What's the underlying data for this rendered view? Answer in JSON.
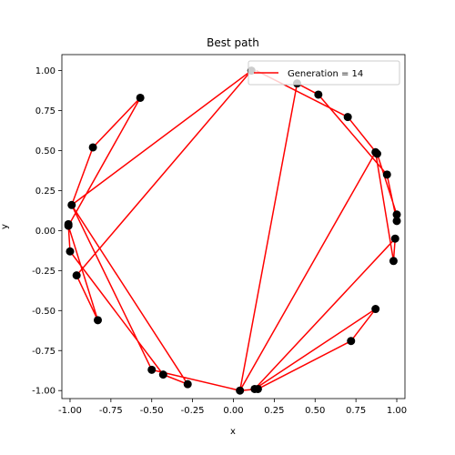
{
  "chart_data": {
    "type": "line",
    "title": "Best path",
    "xlabel": "x",
    "ylabel": "y",
    "xlim": [
      -1.05,
      1.05
    ],
    "ylim": [
      -1.05,
      1.1
    ],
    "xticks": [
      "-1.00",
      "-0.75",
      "-0.50",
      "-0.25",
      "0.00",
      "0.25",
      "0.50",
      "0.75",
      "1.00"
    ],
    "xtick_values": [
      -1.0,
      -0.75,
      -0.5,
      -0.25,
      0.0,
      0.25,
      0.5,
      0.75,
      1.0
    ],
    "yticks": [
      "1.00",
      "0.75",
      "0.50",
      "0.25",
      "0.00",
      "-0.25",
      "-0.50",
      "-0.75",
      "-1.00"
    ],
    "ytick_values": [
      1.0,
      0.75,
      0.5,
      0.25,
      0.0,
      -0.25,
      -0.5,
      -0.75,
      -1.0
    ],
    "grid": false,
    "legend": {
      "placement": "top-right",
      "label": "Generation = 14"
    },
    "path_color": "#ff0000",
    "point_color": "#000000",
    "points": [
      {
        "x": 0.11,
        "y": 1.0
      },
      {
        "x": 0.39,
        "y": 0.92
      },
      {
        "x": 0.52,
        "y": 0.85
      },
      {
        "x": 0.7,
        "y": 0.71
      },
      {
        "x": 0.87,
        "y": 0.49
      },
      {
        "x": 0.88,
        "y": 0.48
      },
      {
        "x": 0.94,
        "y": 0.35
      },
      {
        "x": 1.0,
        "y": 0.1
      },
      {
        "x": 1.0,
        "y": 0.06
      },
      {
        "x": 0.99,
        "y": -0.05
      },
      {
        "x": 0.98,
        "y": -0.19
      },
      {
        "x": 0.87,
        "y": -0.49
      },
      {
        "x": 0.72,
        "y": -0.69
      },
      {
        "x": 0.15,
        "y": -0.99
      },
      {
        "x": 0.13,
        "y": -0.99
      },
      {
        "x": 0.04,
        "y": -1.0
      },
      {
        "x": -0.28,
        "y": -0.96
      },
      {
        "x": -0.43,
        "y": -0.9
      },
      {
        "x": -0.5,
        "y": -0.87
      },
      {
        "x": -0.83,
        "y": -0.56
      },
      {
        "x": -0.96,
        "y": -0.28
      },
      {
        "x": -1.0,
        "y": -0.13
      },
      {
        "x": -1.01,
        "y": 0.03
      },
      {
        "x": -1.01,
        "y": 0.04
      },
      {
        "x": -0.99,
        "y": 0.16
      },
      {
        "x": -0.86,
        "y": 0.52
      },
      {
        "x": -0.57,
        "y": 0.83
      }
    ],
    "path": [
      {
        "x": 0.14,
        "y": 1.0
      },
      {
        "x": 0.7,
        "y": 0.71
      },
      {
        "x": 0.88,
        "y": 0.48
      },
      {
        "x": 1.0,
        "y": 0.1
      },
      {
        "x": 1.0,
        "y": 0.06
      },
      {
        "x": 0.94,
        "y": 0.35
      },
      {
        "x": 0.52,
        "y": 0.85
      },
      {
        "x": 0.39,
        "y": 0.92
      },
      {
        "x": 0.04,
        "y": -1.0
      },
      {
        "x": 0.87,
        "y": 0.49
      },
      {
        "x": 0.98,
        "y": -0.19
      },
      {
        "x": 0.99,
        "y": -0.05
      },
      {
        "x": 0.13,
        "y": -0.99
      },
      {
        "x": 0.87,
        "y": -0.49
      },
      {
        "x": 0.72,
        "y": -0.69
      },
      {
        "x": 0.15,
        "y": -0.99
      },
      {
        "x": 0.04,
        "y": -1.0
      },
      {
        "x": -0.5,
        "y": -0.87
      },
      {
        "x": -0.99,
        "y": 0.16
      },
      {
        "x": -0.28,
        "y": -0.96
      },
      {
        "x": -0.43,
        "y": -0.9
      },
      {
        "x": -1.0,
        "y": -0.13
      },
      {
        "x": -1.01,
        "y": 0.03
      },
      {
        "x": -0.83,
        "y": -0.56
      },
      {
        "x": -0.96,
        "y": -0.28
      },
      {
        "x": 0.11,
        "y": 1.0
      },
      {
        "x": -0.99,
        "y": 0.16
      },
      {
        "x": -0.86,
        "y": 0.52
      },
      {
        "x": -0.57,
        "y": 0.83
      },
      {
        "x": -1.01,
        "y": 0.03
      }
    ]
  }
}
